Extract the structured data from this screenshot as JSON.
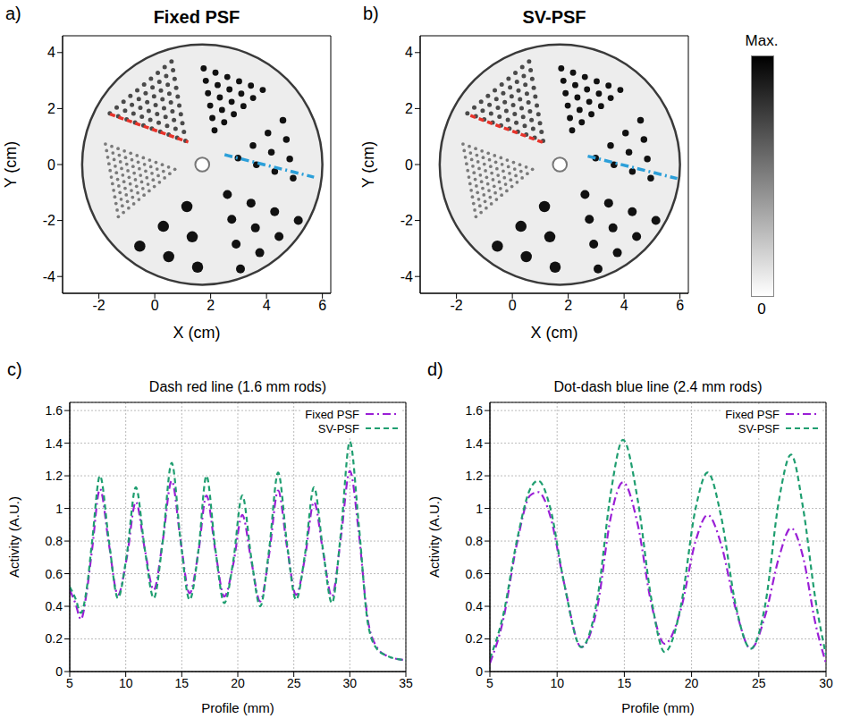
{
  "chart_data": [
    {
      "panel": "a)",
      "type": "image",
      "title": "Fixed PSF",
      "x_label": "X (cm)",
      "y_label": "Y (cm)",
      "xlim": [
        -3.3,
        6.3
      ],
      "ylim": [
        -4.6,
        4.6
      ],
      "xticks": [
        -2,
        0,
        2,
        4,
        6
      ],
      "yticks": [
        -4,
        -2,
        0,
        2,
        4
      ],
      "profiles": [
        {
          "color": "#e8332a",
          "line_style": "dashed",
          "x": [
            -1.6,
            1.2
          ],
          "y": [
            1.8,
            0.8
          ]
        },
        {
          "color": "#2b9fd9",
          "line_style": "dashdot",
          "x": [
            2.5,
            5.7
          ],
          "y": [
            0.35,
            -0.45
          ]
        }
      ]
    },
    {
      "panel": "b)",
      "type": "image",
      "title": "SV-PSF",
      "x_label": "X (cm)",
      "y_label": "Y (cm)",
      "xlim": [
        -3.3,
        6.3
      ],
      "ylim": [
        -4.6,
        4.6
      ],
      "xticks": [
        -2,
        0,
        2,
        4,
        6
      ],
      "yticks": [
        -4,
        -2,
        0,
        2,
        4
      ],
      "profiles": [
        {
          "color": "#e8332a",
          "line_style": "dashed",
          "x": [
            -1.5,
            1.2
          ],
          "y": [
            1.75,
            0.75
          ]
        },
        {
          "color": "#2b9fd9",
          "line_style": "dashdot",
          "x": [
            2.7,
            5.9
          ],
          "y": [
            0.3,
            -0.5
          ]
        }
      ]
    },
    {
      "panel": "c)",
      "type": "line",
      "title": "Dash red line (1.6 mm rods)",
      "x_label": "Profile (mm)",
      "y_label": "Activity (A.U.)",
      "x": [
        5,
        5.5,
        6,
        6.5,
        7,
        7.7,
        8.5,
        9.3,
        10.1,
        10.9,
        11.7,
        12.5,
        13.3,
        14.1,
        14.9,
        15.7,
        16.5,
        17.2,
        18.0,
        18.8,
        19.6,
        20.4,
        21.2,
        22.0,
        22.8,
        23.6,
        24.4,
        25.2,
        26.0,
        26.8,
        27.6,
        28.4,
        29.2,
        30.0,
        30.8,
        31.6,
        32.4,
        33.2,
        34,
        35
      ],
      "series": [
        {
          "name": "Fixed PSF",
          "color": "#9a1fd6",
          "line_style": "dashdot",
          "values": [
            0.5,
            0.42,
            0.32,
            0.48,
            0.75,
            1.12,
            0.78,
            0.47,
            0.7,
            1.04,
            0.75,
            0.5,
            0.8,
            1.17,
            0.8,
            0.48,
            0.74,
            1.08,
            0.74,
            0.46,
            0.66,
            0.96,
            0.68,
            0.43,
            0.72,
            1.11,
            0.76,
            0.47,
            0.7,
            1.04,
            0.74,
            0.46,
            0.82,
            1.23,
            0.85,
            0.32,
            0.15,
            0.1,
            0.08,
            0.07
          ]
        },
        {
          "name": "SV-PSF",
          "color": "#1f9e70",
          "line_style": "dashed",
          "values": [
            0.52,
            0.45,
            0.36,
            0.5,
            0.8,
            1.2,
            0.8,
            0.45,
            0.72,
            1.13,
            0.75,
            0.45,
            0.8,
            1.28,
            0.8,
            0.44,
            0.75,
            1.2,
            0.75,
            0.42,
            0.68,
            1.08,
            0.7,
            0.4,
            0.75,
            1.22,
            0.78,
            0.44,
            0.72,
            1.13,
            0.75,
            0.42,
            0.85,
            1.41,
            0.9,
            0.3,
            0.14,
            0.1,
            0.08,
            0.07
          ]
        }
      ],
      "xlim": [
        5,
        35
      ],
      "xticks": [
        5,
        10,
        15,
        20,
        25,
        30,
        35
      ],
      "ylim": [
        0,
        1.65
      ],
      "yticks": [
        0,
        0.2,
        0.4,
        0.6,
        0.8,
        1,
        1.2,
        1.4,
        1.6
      ],
      "grid": true,
      "legend": "upper right"
    },
    {
      "panel": "d)",
      "type": "line",
      "title": "Dot-dash blue line (2.4 mm rods)",
      "x_label": "Profile (mm)",
      "y_label": "Activity (A.U.)",
      "x": [
        5,
        6,
        7,
        8,
        8.6,
        9.5,
        10.5,
        11.8,
        13,
        14,
        14.9,
        16,
        17,
        18,
        19.2,
        20.3,
        21.2,
        22.2,
        23.3,
        24.4,
        25.5,
        26.5,
        27.4,
        28.3,
        29.2,
        30
      ],
      "series": [
        {
          "name": "Fixed PSF",
          "color": "#9a1fd6",
          "line_style": "dashdot",
          "values": [
            0.05,
            0.32,
            0.78,
            1.08,
            1.1,
            0.95,
            0.55,
            0.15,
            0.4,
            0.95,
            1.16,
            0.9,
            0.42,
            0.17,
            0.38,
            0.8,
            0.96,
            0.78,
            0.38,
            0.14,
            0.35,
            0.7,
            0.88,
            0.7,
            0.3,
            0.05
          ]
        },
        {
          "name": "SV-PSF",
          "color": "#1f9e70",
          "line_style": "dashed",
          "values": [
            0.08,
            0.35,
            0.8,
            1.12,
            1.17,
            1.0,
            0.55,
            0.15,
            0.45,
            1.1,
            1.42,
            1.05,
            0.45,
            0.12,
            0.4,
            1.0,
            1.22,
            0.95,
            0.4,
            0.14,
            0.42,
            1.05,
            1.33,
            1.0,
            0.45,
            0.1
          ]
        }
      ],
      "xlim": [
        5,
        30
      ],
      "xticks": [
        5,
        10,
        15,
        20,
        25,
        30
      ],
      "ylim": [
        0,
        1.65
      ],
      "yticks": [
        0,
        0.2,
        0.4,
        0.6,
        0.8,
        1,
        1.2,
        1.4,
        1.6
      ],
      "grid": true,
      "legend": "upper right"
    }
  ],
  "phantom": {
    "center": [
      1.7,
      0
    ],
    "radius": 4.3,
    "core_radius": 0.25,
    "sectors": [
      {
        "rod_diameter": 0.16,
        "apex": [
          1.1,
          0.85
        ],
        "step_a": [
          -0.301,
          0.109
        ],
        "step_b": [
          -0.0556,
          0.315
        ],
        "n": 10,
        "color": "#4a4a4a"
      },
      {
        "rod_diameter": 0.22,
        "apex": [
          2.14,
          1.22
        ],
        "step_a": [
          -0.078,
          0.443
        ],
        "step_b": [
          0.345,
          0.289
        ],
        "n": 6,
        "color": "#111111"
      },
      {
        "rod_diameter": 0.24,
        "apex": [
          2.98,
          0.23
        ],
        "step_a": [
          0.536,
          0.45
        ],
        "step_b": [
          0.658,
          -0.239
        ],
        "n": 4,
        "color": "#111111"
      },
      {
        "rod_diameter": 0.32,
        "apex": [
          2.6,
          -1.07
        ],
        "step_a": [
          0.846,
          -0.308
        ],
        "step_b": [
          0.156,
          -0.886
        ],
        "n": 4,
        "color": "#111111"
      },
      {
        "rod_diameter": 0.4,
        "apex": [
          1.15,
          -1.5
        ],
        "step_a": [
          0.191,
          -1.083
        ],
        "step_b": [
          -0.843,
          -0.707
        ],
        "n": 3,
        "color": "#111111"
      },
      {
        "rod_diameter": 0.12,
        "apex": [
          0.72,
          -0.17
        ],
        "step_a": [
          -0.226,
          0.082
        ],
        "step_b": [
          -0.184,
          -0.154
        ],
        "n": 12,
        "color": "#7a7a7a"
      }
    ]
  },
  "colorbar": {
    "range": [
      0,
      1
    ],
    "ticks": [
      0,
      {
        "value": 1,
        "label": "Max."
      }
    ]
  }
}
